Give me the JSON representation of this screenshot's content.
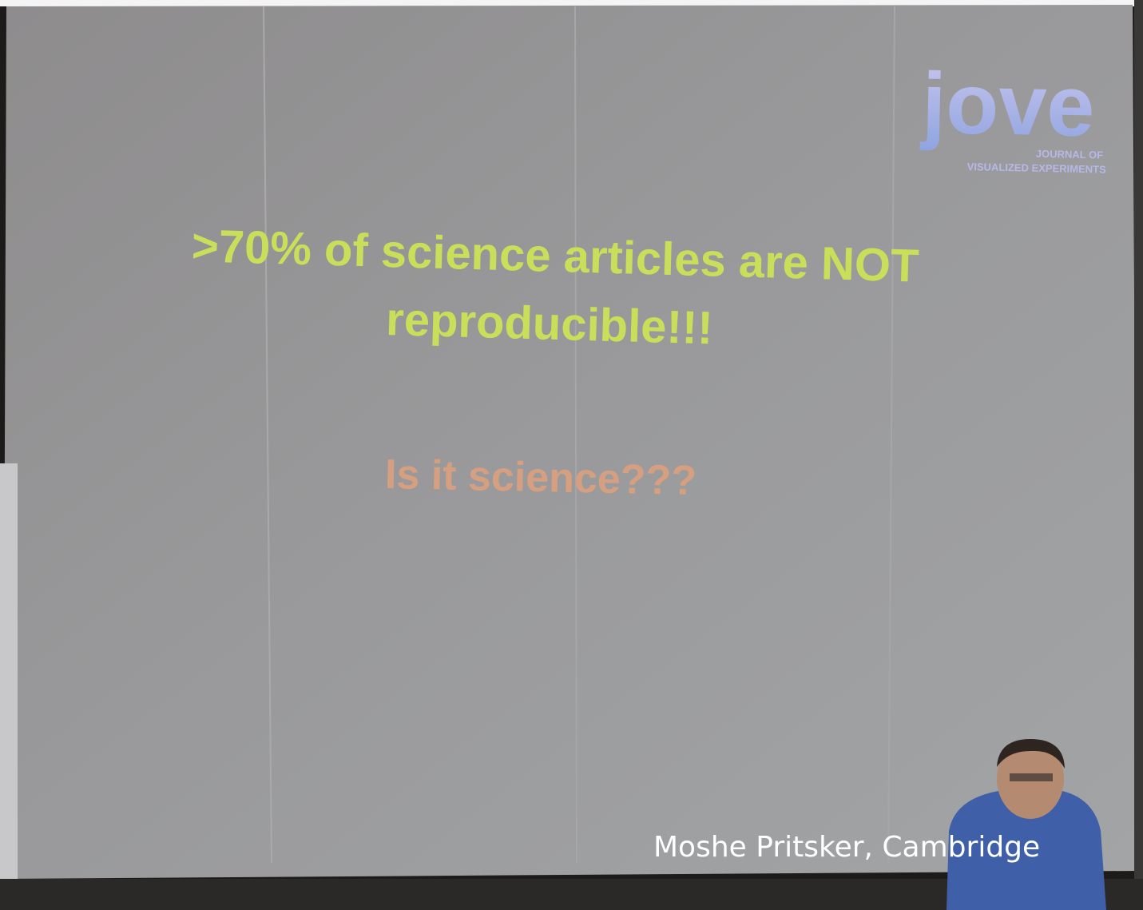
{
  "slide": {
    "logo": {
      "word": "jove",
      "line1": "JOURNAL OF",
      "line2": "VISUALIZED EXPERIMENTS"
    },
    "headline": [
      ">70% of science articles are NOT",
      "reproducible!!!"
    ],
    "question": "Is it science???"
  },
  "caption": "Moshe Pritsker, Cambridge"
}
